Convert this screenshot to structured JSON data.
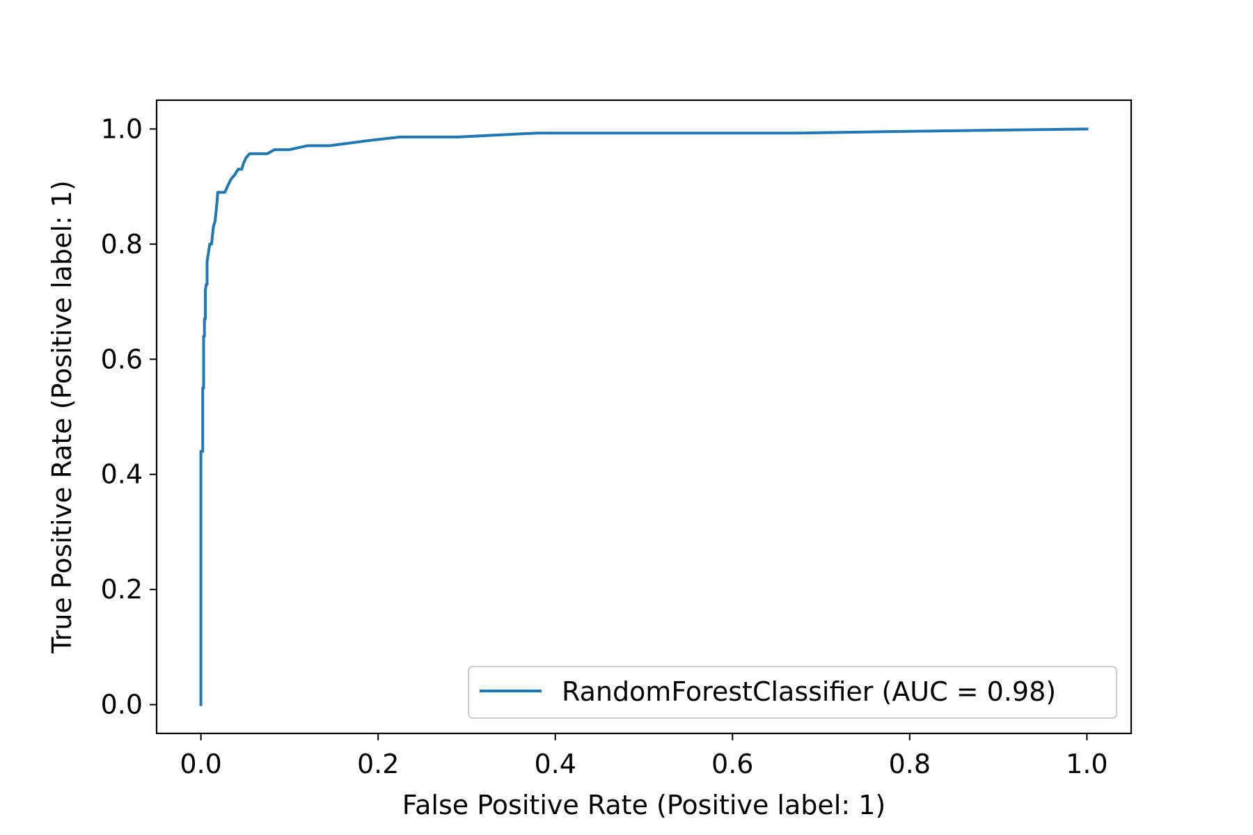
{
  "chart_data": {
    "type": "line",
    "title": "",
    "xlabel": "False Positive Rate (Positive label: 1)",
    "ylabel": "True Positive Rate (Positive label: 1)",
    "xlim": [
      -0.05,
      1.05
    ],
    "ylim": [
      -0.05,
      1.05
    ],
    "xticks": [
      0.0,
      0.2,
      0.4,
      0.6,
      0.8,
      1.0
    ],
    "xtick_labels": [
      "0.0",
      "0.2",
      "0.4",
      "0.6",
      "0.8",
      "1.0"
    ],
    "yticks": [
      0.0,
      0.2,
      0.4,
      0.6,
      0.8,
      1.0
    ],
    "ytick_labels": [
      "0.0",
      "0.2",
      "0.4",
      "0.6",
      "0.8",
      "1.0"
    ],
    "grid": false,
    "legend": {
      "position": "lower-right"
    },
    "series": [
      {
        "name": "RandomForestClassifier (AUC = 0.98)",
        "color": "#1f77b4",
        "x": [
          0.0,
          0.0,
          0.002,
          0.002,
          0.003,
          0.003,
          0.004,
          0.004,
          0.005,
          0.005,
          0.006,
          0.007,
          0.007,
          0.008,
          0.009,
          0.01,
          0.012,
          0.014,
          0.016,
          0.018,
          0.019,
          0.021,
          0.022,
          0.024,
          0.027,
          0.03,
          0.033,
          0.035,
          0.038,
          0.04,
          0.042,
          0.046,
          0.048,
          0.051,
          0.055,
          0.06,
          0.068,
          0.075,
          0.083,
          0.1,
          0.12,
          0.145,
          0.19,
          0.225,
          0.29,
          0.38,
          0.5,
          0.675,
          0.8,
          0.9,
          1.0
        ],
        "y": [
          0.0,
          0.44,
          0.44,
          0.55,
          0.55,
          0.64,
          0.64,
          0.67,
          0.67,
          0.72,
          0.73,
          0.73,
          0.77,
          0.78,
          0.79,
          0.8,
          0.8,
          0.83,
          0.84,
          0.87,
          0.89,
          0.89,
          0.89,
          0.89,
          0.89,
          0.9,
          0.91,
          0.915,
          0.92,
          0.925,
          0.93,
          0.93,
          0.94,
          0.95,
          0.957,
          0.957,
          0.957,
          0.957,
          0.964,
          0.964,
          0.971,
          0.971,
          0.98,
          0.986,
          0.986,
          0.993,
          0.993,
          0.993,
          0.996,
          0.998,
          1.0
        ]
      }
    ]
  }
}
